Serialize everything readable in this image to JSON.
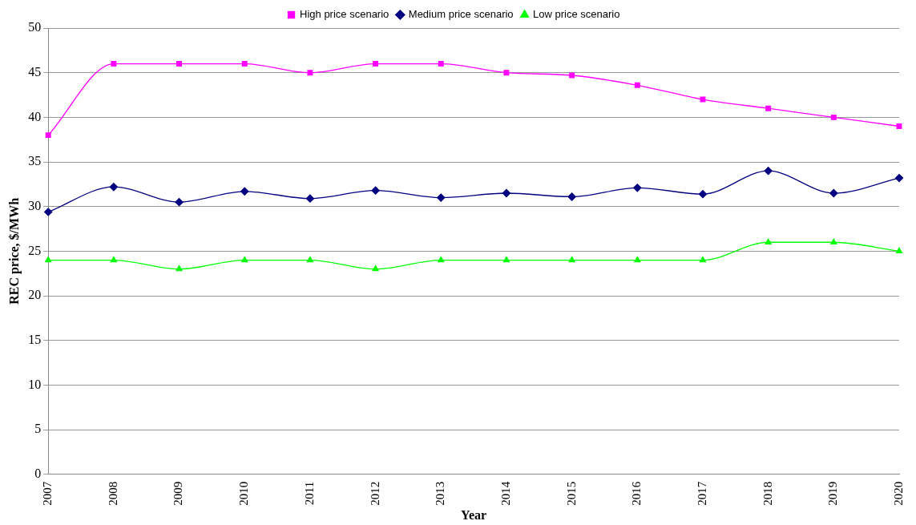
{
  "chart_data": {
    "type": "line",
    "xlabel": "Year",
    "ylabel": "REC price, $/MWh",
    "categories": [
      "2007",
      "2008",
      "2009",
      "2010",
      "2011",
      "2012",
      "2013",
      "2014",
      "2015",
      "2016",
      "2017",
      "2018",
      "2019",
      "2020"
    ],
    "series": [
      {
        "name": "High price scenario",
        "color": "#ff00ff",
        "marker": "square",
        "values": [
          38,
          46,
          46,
          46,
          45,
          46,
          46,
          45,
          44.7,
          43.6,
          42,
          41,
          40,
          39
        ]
      },
      {
        "name": "Medium price scenario",
        "color": "#000080",
        "marker": "diamond",
        "values": [
          29.4,
          32.2,
          30.5,
          31.7,
          30.9,
          31.8,
          31,
          31.5,
          31.1,
          32.1,
          31.4,
          34,
          31.5,
          33.2
        ]
      },
      {
        "name": "Low price scenario",
        "color": "#00ff00",
        "marker": "triangle",
        "values": [
          24,
          24,
          23,
          24,
          24,
          23,
          24,
          24,
          24,
          24,
          24,
          26,
          26,
          25
        ]
      }
    ],
    "ylim": [
      0,
      50
    ],
    "yticks": [
      0,
      5,
      10,
      15,
      20,
      25,
      30,
      35,
      40,
      45,
      50
    ],
    "grid": "y",
    "legend": "top",
    "line_style": "solid"
  }
}
